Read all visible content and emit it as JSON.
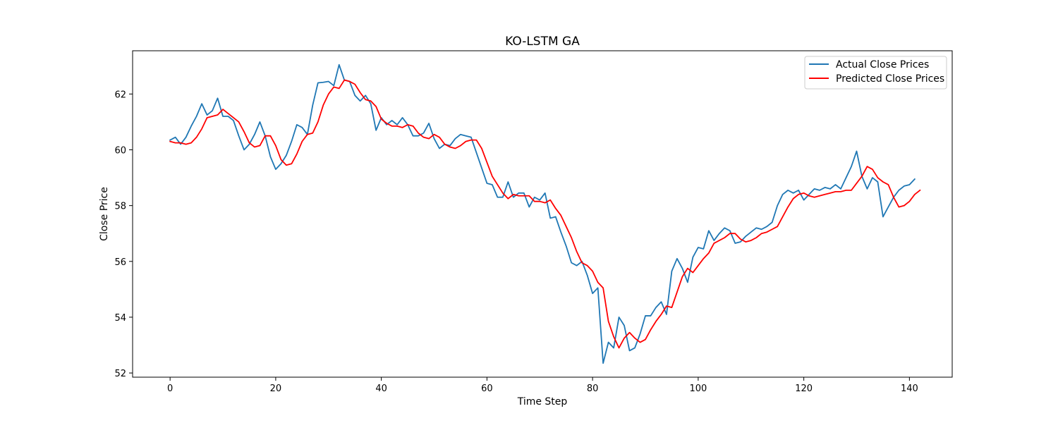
{
  "chart_data": {
    "type": "line",
    "title": "KO-LSTM GA",
    "xlabel": "Time Step",
    "ylabel": "Close Price",
    "xlim": [
      -7.1,
      148.1
    ],
    "ylim": [
      51.85,
      63.55
    ],
    "xticks": [
      0,
      20,
      40,
      60,
      80,
      100,
      120,
      140
    ],
    "yticks": [
      52,
      54,
      56,
      58,
      60,
      62
    ],
    "grid": false,
    "legend_position": "top-right",
    "series": [
      {
        "name": "Actual Close Prices",
        "color": "#1f77b4",
        "values": [
          60.35,
          60.45,
          60.2,
          60.45,
          60.85,
          61.2,
          61.65,
          61.25,
          61.4,
          61.85,
          61.2,
          61.2,
          61.05,
          60.5,
          60.0,
          60.2,
          60.55,
          61.0,
          60.5,
          59.75,
          59.3,
          59.5,
          59.8,
          60.3,
          60.9,
          60.8,
          60.55,
          61.6,
          62.4,
          62.42,
          62.45,
          62.3,
          63.05,
          62.5,
          62.45,
          61.95,
          61.75,
          61.95,
          61.65,
          60.7,
          61.15,
          60.9,
          61.05,
          60.9,
          61.15,
          60.9,
          60.5,
          60.5,
          60.6,
          60.95,
          60.4,
          60.05,
          60.2,
          60.15,
          60.4,
          60.55,
          60.5,
          60.45,
          59.9,
          59.35,
          58.8,
          58.75,
          58.3,
          58.3,
          58.85,
          58.3,
          58.45,
          58.45,
          57.95,
          58.3,
          58.2,
          58.45,
          57.55,
          57.6,
          57.05,
          56.55,
          55.95,
          55.85,
          56.0,
          55.5,
          54.85,
          55.05,
          52.35,
          53.1,
          52.9,
          54.0,
          53.7,
          52.8,
          52.9,
          53.4,
          54.05,
          54.05,
          54.35,
          54.55,
          54.1,
          55.65,
          56.1,
          55.75,
          55.25,
          56.15,
          56.5,
          56.45,
          57.1,
          56.75,
          57.0,
          57.2,
          57.1,
          56.65,
          56.7,
          56.9,
          57.05,
          57.2,
          57.15,
          57.25,
          57.4,
          58.0,
          58.4,
          58.55,
          58.45,
          58.55,
          58.2,
          58.4,
          58.6,
          58.55,
          58.65,
          58.6,
          58.75,
          58.6,
          59.0,
          59.4,
          59.95,
          59.05,
          58.6,
          59.0,
          58.85,
          57.6,
          57.95,
          58.3,
          58.55,
          58.7,
          58.75,
          58.95
        ]
      },
      {
        "name": "Predicted Close Prices",
        "color": "#ff0000",
        "values": [
          60.3,
          60.25,
          60.25,
          60.2,
          60.25,
          60.45,
          60.75,
          61.15,
          61.2,
          61.25,
          61.45,
          61.3,
          61.15,
          61.0,
          60.65,
          60.25,
          60.1,
          60.15,
          60.5,
          60.5,
          60.15,
          59.65,
          59.45,
          59.5,
          59.85,
          60.3,
          60.55,
          60.6,
          61.0,
          61.6,
          62.0,
          62.25,
          62.2,
          62.5,
          62.45,
          62.35,
          62.05,
          61.8,
          61.75,
          61.55,
          61.1,
          60.95,
          60.85,
          60.85,
          60.8,
          60.9,
          60.85,
          60.6,
          60.45,
          60.4,
          60.55,
          60.45,
          60.2,
          60.1,
          60.05,
          60.15,
          60.3,
          60.35,
          60.35,
          60.05,
          59.55,
          59.05,
          58.75,
          58.45,
          58.25,
          58.4,
          58.35,
          58.35,
          58.35,
          58.15,
          58.15,
          58.1,
          58.2,
          57.9,
          57.65,
          57.25,
          56.85,
          56.35,
          55.95,
          55.85,
          55.65,
          55.25,
          55.05,
          53.85,
          53.3,
          52.9,
          53.25,
          53.45,
          53.25,
          53.1,
          53.2,
          53.55,
          53.85,
          54.1,
          54.4,
          54.35,
          54.9,
          55.45,
          55.75,
          55.6,
          55.85,
          56.1,
          56.3,
          56.65,
          56.75,
          56.85,
          57.0,
          57.0,
          56.8,
          56.7,
          56.75,
          56.85,
          57.0,
          57.05,
          57.15,
          57.25,
          57.6,
          57.95,
          58.25,
          58.4,
          58.45,
          58.35,
          58.3,
          58.35,
          58.4,
          58.45,
          58.5,
          58.5,
          58.55,
          58.55,
          58.8,
          59.05,
          59.4,
          59.3,
          59.0,
          58.85,
          58.75,
          58.3,
          57.95,
          58.0,
          58.15,
          58.4,
          58.55
        ]
      }
    ]
  }
}
